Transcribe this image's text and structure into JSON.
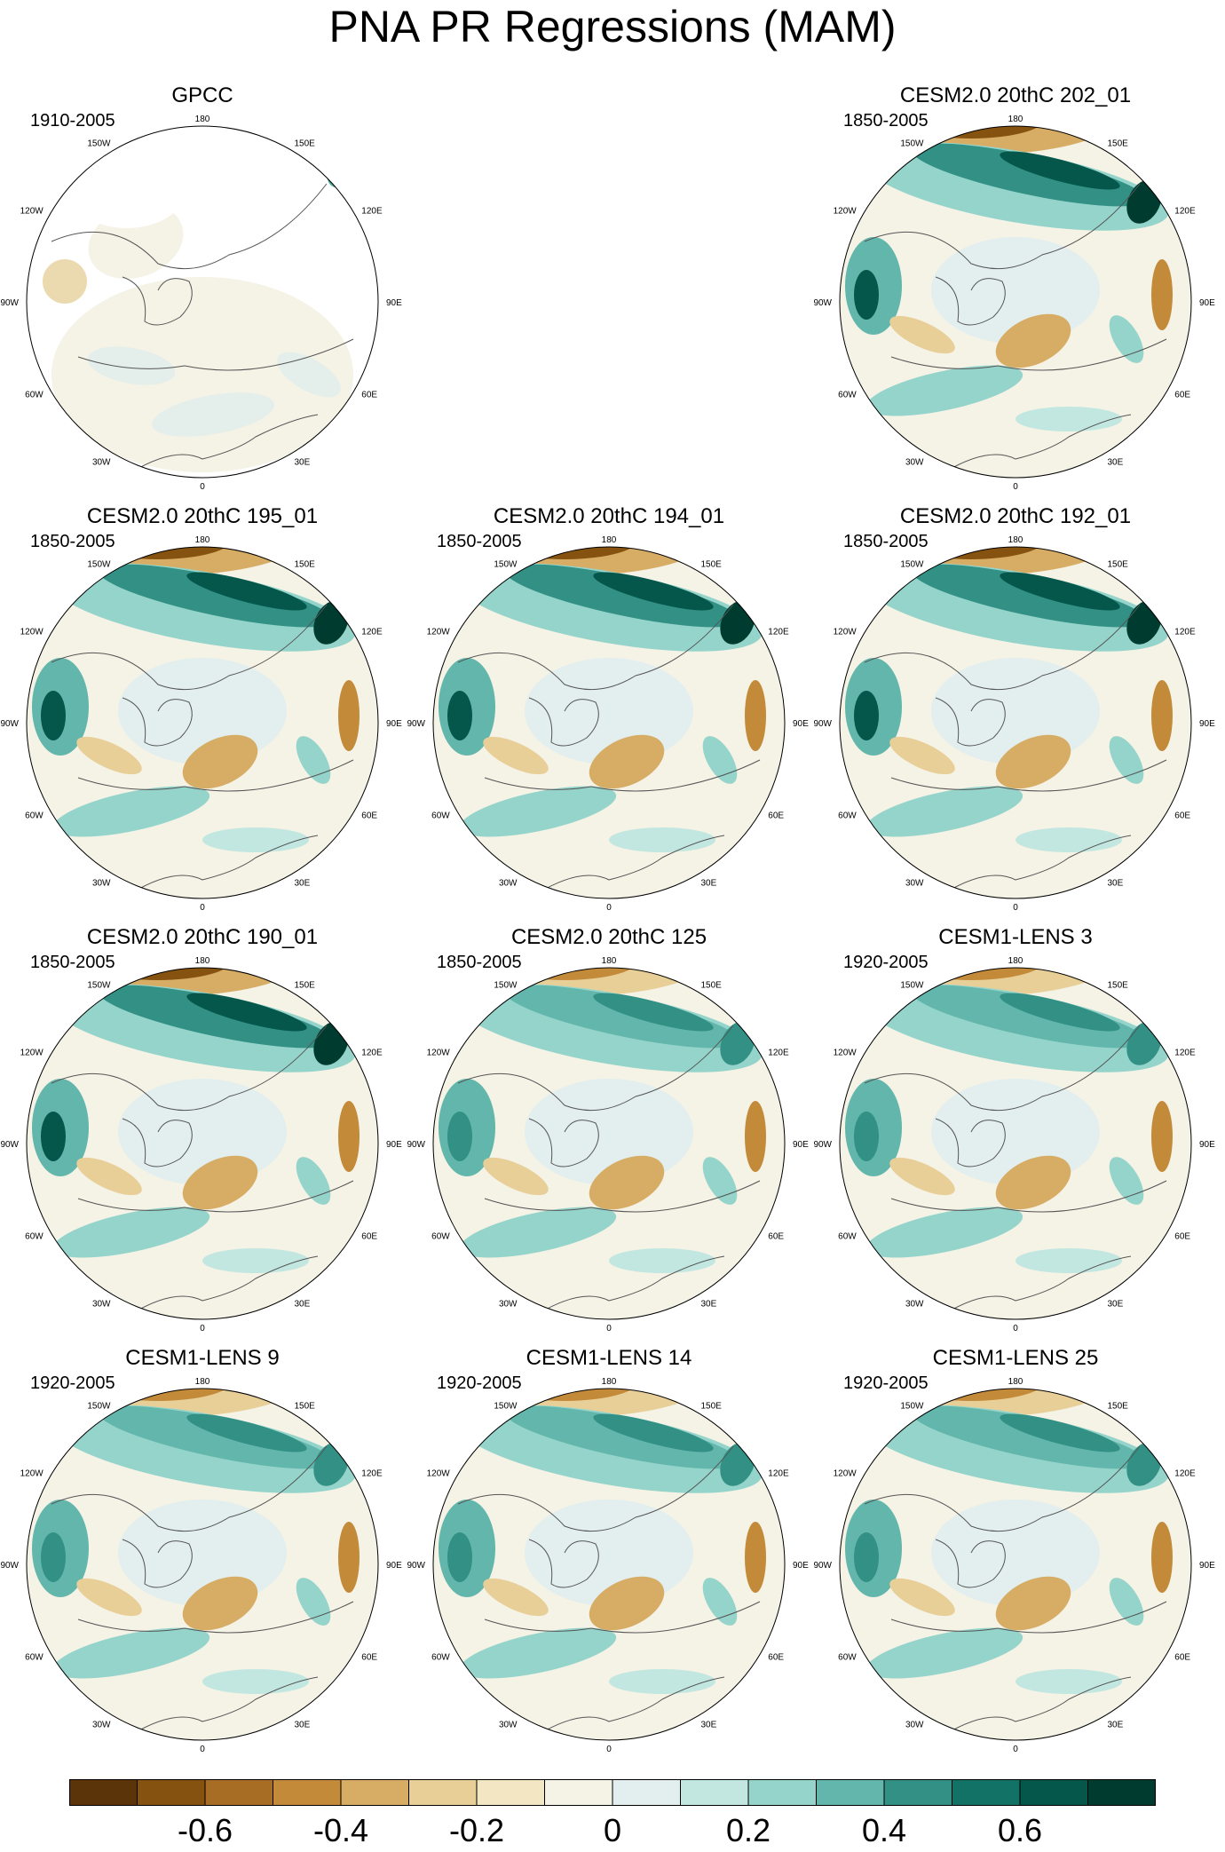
{
  "title": "PNA PR Regressions (MAM)",
  "longitude_labels": [
    "180",
    "150E",
    "120E",
    "90E",
    "60E",
    "30E",
    "0",
    "30W",
    "60W",
    "90W",
    "120W",
    "150W"
  ],
  "colors": {
    "colorbar": [
      "#5b3409",
      "#865210",
      "#a86d24",
      "#c38a3a",
      "#d7ad66",
      "#e8cf98",
      "#f3e6c3",
      "#f5f2e6",
      "#e2efee",
      "#c2e7e1",
      "#95d4cb",
      "#63b6ab",
      "#329085",
      "#137266",
      "#05574c",
      "#003b30"
    ],
    "land_missing": "#ffffff",
    "coast": "#555555"
  },
  "colorbar_ticks": [
    "-0.6",
    "-0.4",
    "-0.2",
    "0",
    "0.2",
    "0.4",
    "0.6"
  ],
  "panels": [
    {
      "id": "gpcc",
      "title": "GPCC",
      "period": "1910-2005",
      "variant": "obs"
    },
    {
      "id": "c202",
      "title": "CESM2.0 20thC 202_01",
      "period": "1850-2005",
      "variant": "strong"
    },
    {
      "id": "c195",
      "title": "CESM2.0 20thC 195_01",
      "period": "1850-2005",
      "variant": "strong"
    },
    {
      "id": "c194",
      "title": "CESM2.0 20thC 194_01",
      "period": "1850-2005",
      "variant": "strong"
    },
    {
      "id": "c192",
      "title": "CESM2.0 20thC 192_01",
      "period": "1850-2005",
      "variant": "strong"
    },
    {
      "id": "c190",
      "title": "CESM2.0 20thC 190_01",
      "period": "1850-2005",
      "variant": "strong"
    },
    {
      "id": "c125",
      "title": "CESM2.0 20thC 125",
      "period": "1850-2005",
      "variant": "medium"
    },
    {
      "id": "l3",
      "title": "CESM1-LENS 3",
      "period": "1920-2005",
      "variant": "medium"
    },
    {
      "id": "l9",
      "title": "CESM1-LENS 9",
      "period": "1920-2005",
      "variant": "medium"
    },
    {
      "id": "l14",
      "title": "CESM1-LENS 14",
      "period": "1920-2005",
      "variant": "medium"
    },
    {
      "id": "l25",
      "title": "CESM1-LENS 25",
      "period": "1920-2005",
      "variant": "medium"
    }
  ]
}
